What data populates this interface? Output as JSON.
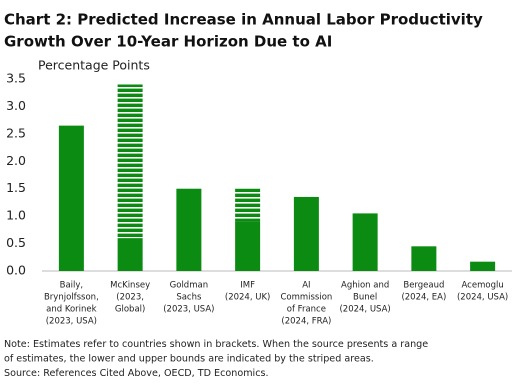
{
  "chart_data": {
    "type": "bar",
    "title": [
      "Chart 2: Predicted Increase in Annual Labor Productivity",
      "Growth Over 10-Year Horizon Due to AI"
    ],
    "y_label": "Percentage Points",
    "categories": [
      [
        "Baily,",
        "Brynjolfsson,",
        "and Korinek",
        "(2023, USA)"
      ],
      [
        "McKinsey",
        "(2023,",
        "Global)"
      ],
      [
        "Goldman",
        "Sachs",
        "(2023, USA)"
      ],
      [
        "IMF",
        "(2024, UK)"
      ],
      [
        "AI",
        "Commission",
        "of France",
        "(2024, FRA)"
      ],
      [
        "Aghion and",
        "Bunel",
        "(2024, USA)"
      ],
      [
        "Bergeaud",
        "(2024, EA)"
      ],
      [
        "Acemoglu",
        "(2024, USA)"
      ]
    ],
    "values": [
      2.65,
      3.4,
      1.5,
      1.5,
      1.35,
      1.05,
      0.45,
      0.17
    ],
    "lower_bounds": [
      null,
      0.6,
      null,
      0.9,
      null,
      null,
      null,
      null
    ],
    "color": "#0b8b12",
    "ylim": [
      0,
      3.5
    ],
    "yticks": [
      {
        "value": 0,
        "label": "0.0"
      },
      0.5,
      {
        "value": 1,
        "label": "1.0"
      },
      1.5,
      {
        "value": 2,
        "label": "2.0"
      },
      2.5,
      {
        "value": 3,
        "label": "3.0"
      },
      3.5
    ],
    "notes": [
      "Note: Estimates refer to countries shown in brackets. When the source presents a range",
      "of estimates, the lower and upper bounds are indicated by the striped areas.",
      "Source: References Cited Above, OECD, TD Economics."
    ]
  }
}
